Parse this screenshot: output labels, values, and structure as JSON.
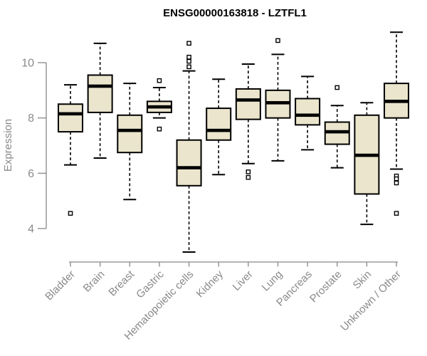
{
  "chart_data": {
    "type": "boxplot",
    "title": "ENSG00000163818 - LZTFL1",
    "ylabel": "Expression",
    "xlabel": "",
    "yticks": [
      10,
      8,
      6,
      4
    ],
    "ylim": [
      4,
      10
    ],
    "grid": false,
    "legend": false,
    "colors": {
      "box_fill": "#EAE5CC",
      "box_border": "#000000",
      "median": "#000000",
      "whisker": "#000000",
      "outlier": "#000000",
      "axis": "#888888",
      "tick_text": "#8A8A8A",
      "title_text": "#000000"
    },
    "categories": [
      "Bladder",
      "Brain",
      "Breast",
      "Gastric",
      "Hematopoietic cells",
      "Kidney",
      "Liver",
      "Lung",
      "Pancreas",
      "Prostate",
      "Skin",
      "Unknown / Other"
    ],
    "series": [
      {
        "category": "Bladder",
        "whisker_low": 6.3,
        "q1": 7.5,
        "median": 8.15,
        "q3": 8.5,
        "whisker_high": 9.2,
        "outliers": [
          4.55
        ]
      },
      {
        "category": "Brain",
        "whisker_low": 6.55,
        "q1": 8.2,
        "median": 9.15,
        "q3": 9.55,
        "whisker_high": 10.7,
        "outliers": []
      },
      {
        "category": "Breast",
        "whisker_low": 5.05,
        "q1": 6.75,
        "median": 7.55,
        "q3": 8.1,
        "whisker_high": 9.25,
        "outliers": []
      },
      {
        "category": "Gastric",
        "whisker_low": 8.0,
        "q1": 8.2,
        "median": 8.4,
        "q3": 8.6,
        "whisker_high": 9.1,
        "outliers": [
          9.35,
          7.6
        ]
      },
      {
        "category": "Hematopoietic cells",
        "whisker_low": 3.15,
        "q1": 5.55,
        "median": 6.2,
        "q3": 7.2,
        "whisker_high": 9.7,
        "outliers": [
          10.7,
          10.2,
          10.05,
          9.85
        ]
      },
      {
        "category": "Kidney",
        "whisker_low": 5.95,
        "q1": 7.2,
        "median": 7.55,
        "q3": 8.35,
        "whisker_high": 9.4,
        "outliers": []
      },
      {
        "category": "Liver",
        "whisker_low": 6.35,
        "q1": 7.95,
        "median": 8.65,
        "q3": 9.05,
        "whisker_high": 9.95,
        "outliers": [
          6.05,
          5.85
        ]
      },
      {
        "category": "Lung",
        "whisker_low": 6.45,
        "q1": 8.0,
        "median": 8.55,
        "q3": 9.0,
        "whisker_high": 10.3,
        "outliers": [
          10.8
        ]
      },
      {
        "category": "Pancreas",
        "whisker_low": 6.85,
        "q1": 7.75,
        "median": 8.1,
        "q3": 8.7,
        "whisker_high": 9.5,
        "outliers": []
      },
      {
        "category": "Prostate",
        "whisker_low": 6.2,
        "q1": 7.05,
        "median": 7.5,
        "q3": 7.85,
        "whisker_high": 8.45,
        "outliers": [
          9.1
        ]
      },
      {
        "category": "Skin",
        "whisker_low": 4.15,
        "q1": 5.25,
        "median": 6.65,
        "q3": 8.1,
        "whisker_high": 8.55,
        "outliers": []
      },
      {
        "category": "Unknown / Other",
        "whisker_low": 6.15,
        "q1": 8.0,
        "median": 8.6,
        "q3": 9.25,
        "whisker_high": 11.1,
        "outliers": [
          5.9,
          5.8,
          5.65,
          4.55
        ]
      }
    ]
  }
}
